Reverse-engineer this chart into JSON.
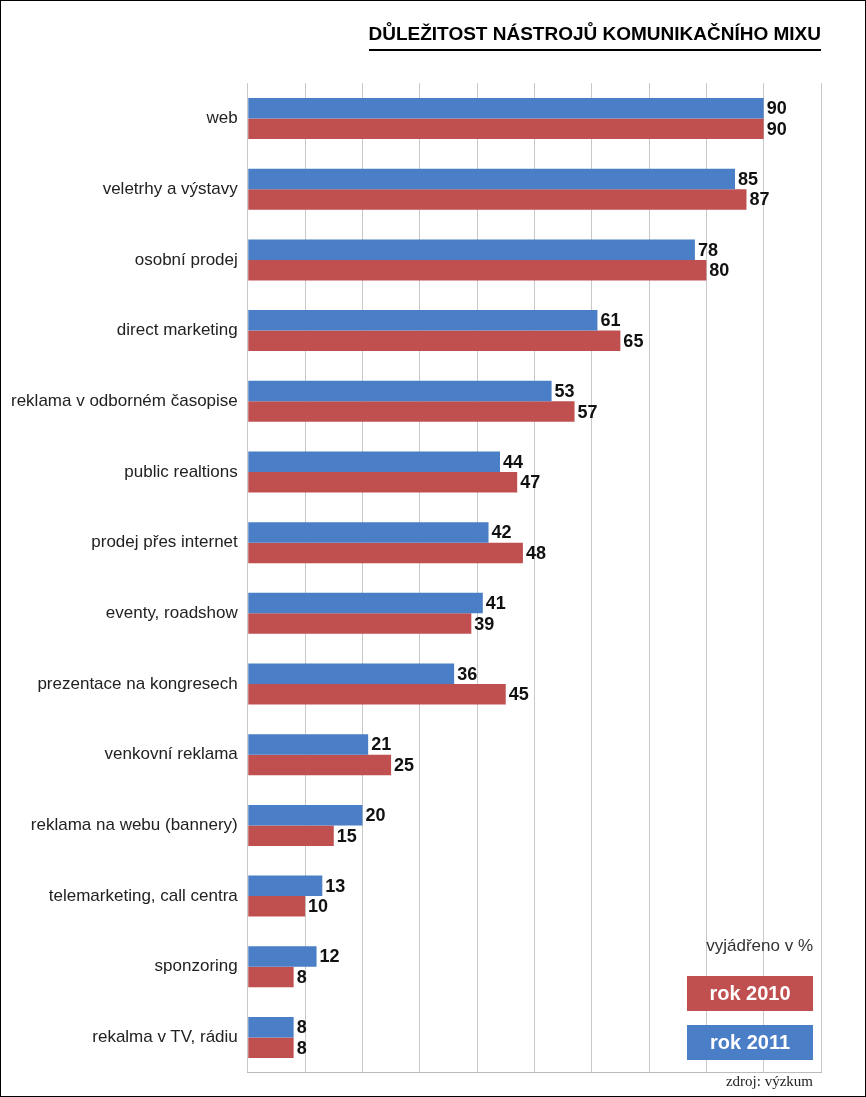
{
  "chart_data": {
    "type": "bar",
    "orientation": "horizontal",
    "title": "DŮLEŽITOST NÁSTROJŮ KOMUNIKAČNÍHO MIXU",
    "categories": [
      "web",
      "veletrhy a výstavy",
      "osobní prodej",
      "direct marketing",
      "reklama v odborném časopise",
      "public realtions",
      "prodej přes internet",
      "eventy, roadshow",
      "prezentace na kongresech",
      "venkovní reklama",
      "reklama na webu (bannery)",
      "telemarketing, call centra",
      "sponzoring",
      "rekalma v TV, rádiu"
    ],
    "series": [
      {
        "name": "rok 2011",
        "color": "#4a7ec6",
        "values": [
          90,
          85,
          78,
          61,
          53,
          44,
          42,
          41,
          36,
          21,
          20,
          13,
          12,
          8
        ]
      },
      {
        "name": "rok 2010",
        "color": "#c0504f",
        "values": [
          90,
          87,
          80,
          65,
          57,
          47,
          48,
          39,
          45,
          25,
          15,
          10,
          8,
          8
        ]
      }
    ],
    "xlim": [
      0,
      100
    ],
    "xticks": [
      {
        "value": 0,
        "label": null
      },
      {
        "value": 10,
        "label": null
      },
      {
        "value": 20,
        "label": null
      },
      {
        "value": 30,
        "label": null
      },
      {
        "value": 40,
        "label": null
      },
      {
        "value": 50,
        "label": null
      },
      {
        "value": 60,
        "label": null
      },
      {
        "value": 70,
        "label": null
      },
      {
        "value": 80,
        "label": null
      },
      {
        "value": 90,
        "label": null
      },
      {
        "value": 100,
        "label": null
      }
    ],
    "tick_labels": "y",
    "grid": "x",
    "data_labels": true,
    "legend": "bottom right",
    "legend_title": "vyjádřeno v %",
    "annotations": [
      "zdroj: výzkum"
    ]
  }
}
